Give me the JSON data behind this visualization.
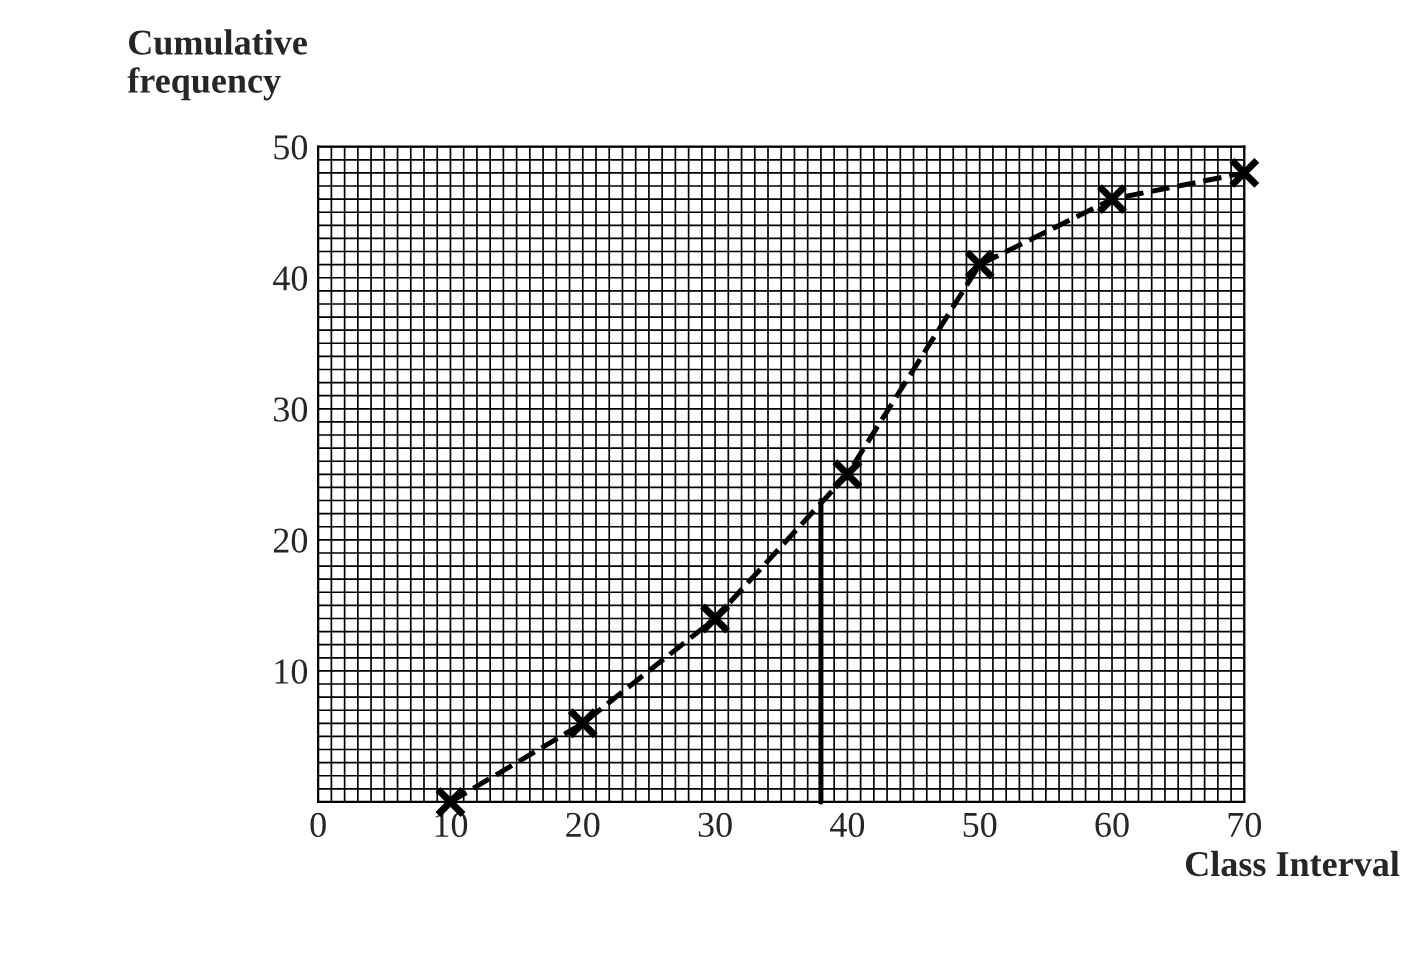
{
  "chart_data": {
    "type": "line",
    "xlabel": "Class Interval",
    "ylabel": "Cumulative\nfrequency",
    "x": [
      10,
      20,
      30,
      40,
      50,
      60,
      70
    ],
    "series": [
      {
        "color": "#000000",
        "values": [
          0,
          6,
          14,
          25,
          41,
          46,
          48
        ]
      },
      {
        "type": "line",
        "x": [
          38,
          38
        ],
        "values": [
          0,
          23
        ],
        "color": "#000000",
        "marker": "none",
        "line_style": "solid"
      }
    ],
    "xlim": [
      0,
      70
    ],
    "xticks": [
      0,
      10,
      20,
      30,
      40,
      50,
      60,
      70
    ],
    "ylim": [
      0,
      50
    ],
    "yticks": [
      10,
      20,
      30,
      40,
      50
    ],
    "grid": true,
    "marker": "cross",
    "line_style": "dashed",
    "legend": false
  }
}
